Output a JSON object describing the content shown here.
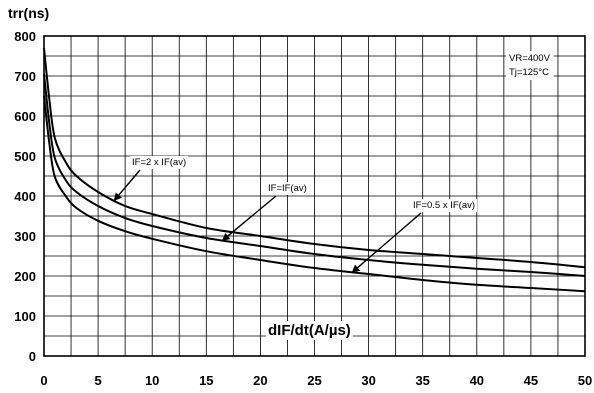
{
  "chart_data": {
    "type": "line",
    "title": "",
    "ylabel": "trr(ns)",
    "xlabel": "dIF/dt(A/µs)",
    "xlim": [
      0,
      50
    ],
    "ylim": [
      0,
      800
    ],
    "x_ticks": [
      0,
      5,
      10,
      15,
      20,
      25,
      30,
      35,
      40,
      45,
      50
    ],
    "y_ticks": [
      0,
      100,
      200,
      300,
      400,
      500,
      600,
      700,
      800
    ],
    "grid": true,
    "conditions": [
      "VR=400V",
      "Tj=125°C"
    ],
    "series": [
      {
        "name": "IF=2 x IF(av)",
        "x": [
          0,
          0.5,
          1,
          2,
          3,
          5,
          7.5,
          10,
          15,
          20,
          25,
          30,
          35,
          40,
          45,
          50
        ],
        "y": [
          770,
          640,
          545,
          485,
          450,
          410,
          375,
          355,
          320,
          300,
          280,
          265,
          255,
          245,
          235,
          222
        ]
      },
      {
        "name": "IF=IF(av)",
        "x": [
          0,
          0.5,
          1,
          2,
          3,
          5,
          7.5,
          10,
          15,
          20,
          25,
          30,
          35,
          40,
          45,
          50
        ],
        "y": [
          705,
          580,
          495,
          440,
          410,
          375,
          345,
          325,
          295,
          275,
          255,
          240,
          228,
          218,
          210,
          200
        ]
      },
      {
        "name": "IF=0.5 x IF(av)",
        "x": [
          0,
          0.5,
          1,
          2,
          3,
          5,
          7.5,
          10,
          15,
          20,
          25,
          30,
          35,
          40,
          45,
          50
        ],
        "y": [
          650,
          530,
          448,
          400,
          370,
          338,
          312,
          293,
          262,
          240,
          220,
          205,
          190,
          178,
          170,
          162
        ]
      }
    ],
    "annotations": [
      {
        "label": "IF=2 x IF(av)",
        "series": 0,
        "at_x": 6.5
      },
      {
        "label": "IF=IF(av)",
        "series": 1,
        "at_x": 16.5
      },
      {
        "label": "IF=0.5 x IF(av)",
        "series": 2,
        "at_x": 28.5
      }
    ]
  }
}
